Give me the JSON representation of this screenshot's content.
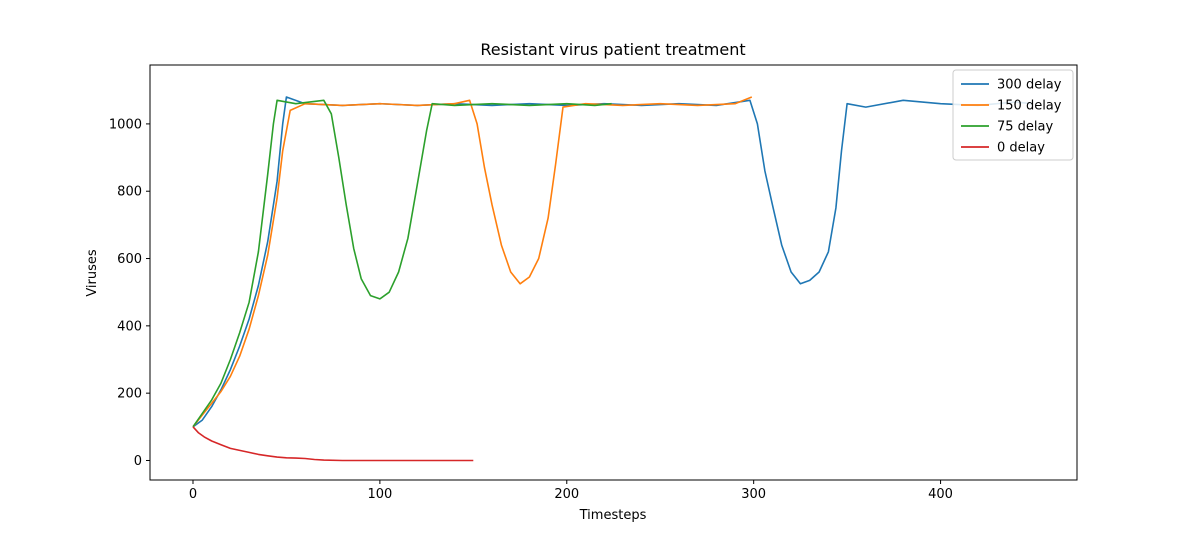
{
  "chart_data": {
    "type": "line",
    "title": "Resistant virus patient treatment",
    "xlabel": "Timesteps",
    "ylabel": "Viruses",
    "xlim": [
      -23,
      473
    ],
    "ylim": [
      -58,
      1175
    ],
    "xticks": [
      0,
      100,
      200,
      300,
      400
    ],
    "yticks": [
      0,
      200,
      400,
      600,
      800,
      1000
    ],
    "grid": false,
    "legend_position": "top-right",
    "series": [
      {
        "name": "300 delay",
        "color": "#1f77b4",
        "points": [
          [
            0,
            100
          ],
          [
            5,
            120
          ],
          [
            10,
            160
          ],
          [
            15,
            210
          ],
          [
            20,
            270
          ],
          [
            25,
            340
          ],
          [
            30,
            420
          ],
          [
            35,
            520
          ],
          [
            40,
            650
          ],
          [
            45,
            830
          ],
          [
            48,
            1000
          ],
          [
            50,
            1080
          ],
          [
            60,
            1060
          ],
          [
            80,
            1055
          ],
          [
            100,
            1060
          ],
          [
            120,
            1055
          ],
          [
            140,
            1060
          ],
          [
            160,
            1055
          ],
          [
            180,
            1060
          ],
          [
            200,
            1055
          ],
          [
            220,
            1060
          ],
          [
            240,
            1055
          ],
          [
            260,
            1060
          ],
          [
            280,
            1055
          ],
          [
            298,
            1070
          ],
          [
            302,
            1000
          ],
          [
            306,
            860
          ],
          [
            310,
            760
          ],
          [
            315,
            640
          ],
          [
            320,
            560
          ],
          [
            325,
            525
          ],
          [
            330,
            535
          ],
          [
            335,
            560
          ],
          [
            340,
            620
          ],
          [
            344,
            750
          ],
          [
            347,
            920
          ],
          [
            350,
            1060
          ],
          [
            360,
            1050
          ],
          [
            380,
            1070
          ],
          [
            400,
            1060
          ],
          [
            420,
            1055
          ],
          [
            440,
            1065
          ],
          [
            449,
            1060
          ]
        ]
      },
      {
        "name": "150 delay",
        "color": "#ff7f0e",
        "points": [
          [
            0,
            100
          ],
          [
            5,
            135
          ],
          [
            10,
            170
          ],
          [
            15,
            205
          ],
          [
            20,
            250
          ],
          [
            25,
            310
          ],
          [
            30,
            390
          ],
          [
            35,
            490
          ],
          [
            40,
            610
          ],
          [
            45,
            780
          ],
          [
            48,
            920
          ],
          [
            52,
            1040
          ],
          [
            60,
            1060
          ],
          [
            80,
            1055
          ],
          [
            100,
            1060
          ],
          [
            120,
            1055
          ],
          [
            140,
            1060
          ],
          [
            148,
            1070
          ],
          [
            152,
            1000
          ],
          [
            156,
            870
          ],
          [
            160,
            760
          ],
          [
            165,
            640
          ],
          [
            170,
            560
          ],
          [
            175,
            525
          ],
          [
            180,
            545
          ],
          [
            185,
            600
          ],
          [
            190,
            720
          ],
          [
            194,
            880
          ],
          [
            198,
            1050
          ],
          [
            210,
            1060
          ],
          [
            230,
            1055
          ],
          [
            250,
            1060
          ],
          [
            270,
            1055
          ],
          [
            290,
            1060
          ],
          [
            299,
            1080
          ]
        ]
      },
      {
        "name": "75 delay",
        "color": "#2ca02c",
        "points": [
          [
            0,
            100
          ],
          [
            5,
            140
          ],
          [
            10,
            180
          ],
          [
            15,
            230
          ],
          [
            20,
            300
          ],
          [
            25,
            380
          ],
          [
            30,
            470
          ],
          [
            35,
            620
          ],
          [
            40,
            850
          ],
          [
            43,
            1000
          ],
          [
            45,
            1070
          ],
          [
            55,
            1060
          ],
          [
            70,
            1070
          ],
          [
            74,
            1030
          ],
          [
            78,
            900
          ],
          [
            82,
            760
          ],
          [
            86,
            630
          ],
          [
            90,
            540
          ],
          [
            95,
            490
          ],
          [
            100,
            480
          ],
          [
            105,
            500
          ],
          [
            110,
            560
          ],
          [
            115,
            660
          ],
          [
            120,
            820
          ],
          [
            125,
            980
          ],
          [
            128,
            1060
          ],
          [
            140,
            1055
          ],
          [
            160,
            1060
          ],
          [
            180,
            1055
          ],
          [
            200,
            1060
          ],
          [
            215,
            1055
          ],
          [
            224,
            1060
          ]
        ]
      },
      {
        "name": "0 delay",
        "color": "#d62728",
        "points": [
          [
            0,
            100
          ],
          [
            3,
            82
          ],
          [
            6,
            70
          ],
          [
            10,
            58
          ],
          [
            15,
            47
          ],
          [
            20,
            36
          ],
          [
            25,
            30
          ],
          [
            30,
            24
          ],
          [
            35,
            18
          ],
          [
            40,
            14
          ],
          [
            45,
            10
          ],
          [
            50,
            8
          ],
          [
            55,
            7
          ],
          [
            60,
            6
          ],
          [
            65,
            3
          ],
          [
            70,
            1
          ],
          [
            80,
            0
          ],
          [
            100,
            0
          ],
          [
            120,
            0
          ],
          [
            150,
            0
          ]
        ]
      }
    ]
  }
}
